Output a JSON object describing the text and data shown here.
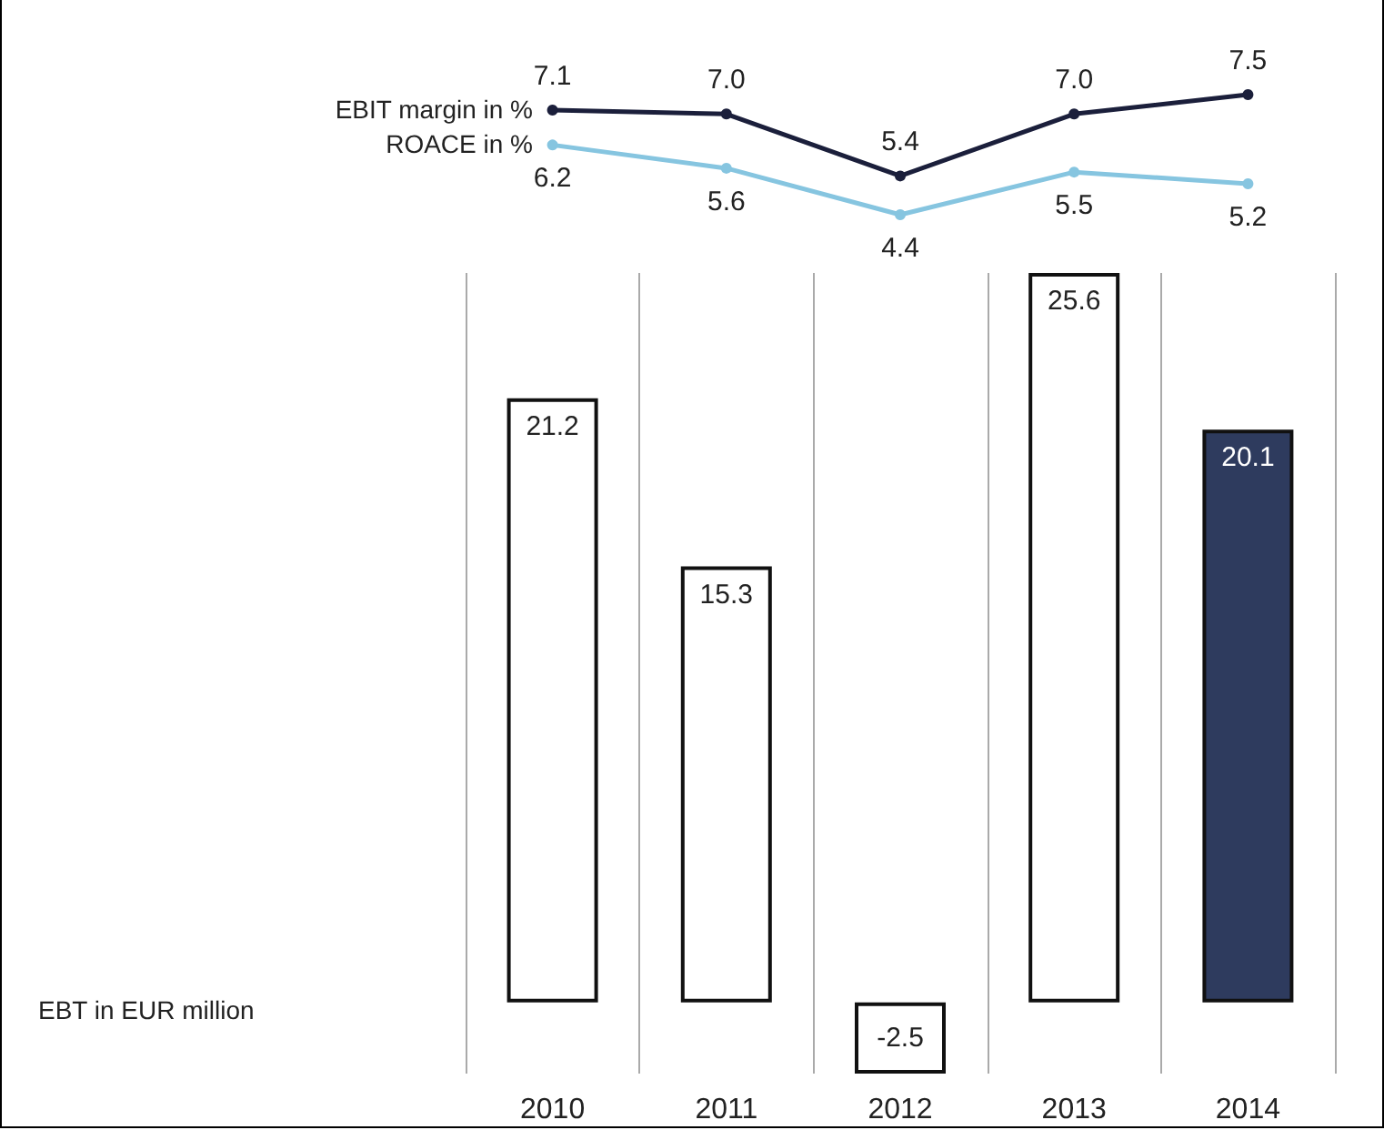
{
  "chart_data": [
    {
      "type": "line",
      "categories": [
        "2010",
        "2011",
        "2012",
        "2013",
        "2014"
      ],
      "series": [
        {
          "name": "EBIT margin in %",
          "color": "#1b1f3b",
          "values": [
            7.1,
            7.0,
            5.4,
            7.0,
            7.5
          ],
          "value_labels": [
            "7.1",
            "7.0",
            "5.4",
            "7.0",
            "7.5"
          ]
        },
        {
          "name": "ROACE in %",
          "color": "#86c5e0",
          "values": [
            6.2,
            5.6,
            4.4,
            5.5,
            5.2
          ],
          "value_labels": [
            "6.2",
            "5.6",
            "4.4",
            "5.5",
            "5.2"
          ]
        }
      ],
      "tick_labels": false,
      "legend": false,
      "marker": "circle"
    },
    {
      "type": "bar",
      "categories": [
        "2010",
        "2011",
        "2012",
        "2013",
        "2014"
      ],
      "series": [
        {
          "name": "EBT in EUR million",
          "values": [
            21.2,
            15.3,
            -2.5,
            25.6,
            20.1
          ],
          "colors": [
            "#ffffff",
            "#ffffff",
            "#ffffff",
            "#ffffff",
            "#2e3b5e"
          ]
        }
      ],
      "data_labels": true,
      "grid": "x",
      "legend": false
    }
  ]
}
